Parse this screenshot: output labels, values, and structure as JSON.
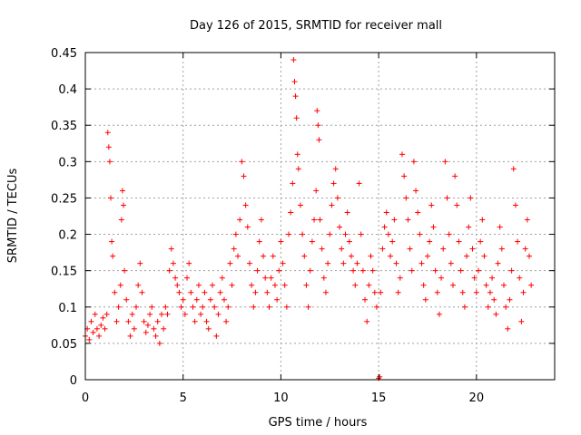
{
  "chart_data": {
    "type": "scatter",
    "title": "Day 126 of 2015, SRMTID for receiver mall",
    "xlabel": "GPS time / hours",
    "ylabel": "SRMTID / TECUs",
    "xlim": [
      0,
      24
    ],
    "ylim": [
      0,
      0.45
    ],
    "xticks": [
      0,
      5,
      10,
      15,
      20
    ],
    "xtick_labels": [
      "0",
      "5",
      "10",
      "15",
      "20"
    ],
    "yticks": [
      0,
      0.05,
      0.1,
      0.15,
      0.2,
      0.25,
      0.3,
      0.35,
      0.4,
      0.45
    ],
    "ytick_labels": [
      "0",
      "0.05",
      "0.1",
      "0.15",
      "0.2",
      "0.25",
      "0.3",
      "0.35",
      "0.4",
      "0.45"
    ],
    "grid": true,
    "marker": "+",
    "color": "#ff0000",
    "series": [
      {
        "name": "SRMTID",
        "points": [
          [
            0.0,
            0.06
          ],
          [
            0.1,
            0.07
          ],
          [
            0.2,
            0.055
          ],
          [
            0.3,
            0.08
          ],
          [
            0.4,
            0.065
          ],
          [
            0.5,
            0.09
          ],
          [
            0.6,
            0.07
          ],
          [
            0.7,
            0.06
          ],
          [
            0.8,
            0.075
          ],
          [
            0.9,
            0.085
          ],
          [
            1.0,
            0.07
          ],
          [
            1.1,
            0.09
          ],
          [
            1.15,
            0.34
          ],
          [
            1.2,
            0.32
          ],
          [
            1.25,
            0.3
          ],
          [
            1.3,
            0.25
          ],
          [
            1.35,
            0.19
          ],
          [
            1.4,
            0.17
          ],
          [
            1.5,
            0.12
          ],
          [
            1.6,
            0.08
          ],
          [
            1.7,
            0.1
          ],
          [
            1.8,
            0.13
          ],
          [
            1.85,
            0.22
          ],
          [
            1.9,
            0.26
          ],
          [
            1.95,
            0.24
          ],
          [
            2.0,
            0.15
          ],
          [
            2.1,
            0.11
          ],
          [
            2.2,
            0.08
          ],
          [
            2.3,
            0.06
          ],
          [
            2.4,
            0.09
          ],
          [
            2.5,
            0.07
          ],
          [
            2.6,
            0.1
          ],
          [
            2.7,
            0.13
          ],
          [
            2.8,
            0.16
          ],
          [
            2.9,
            0.12
          ],
          [
            3.0,
            0.08
          ],
          [
            3.1,
            0.065
          ],
          [
            3.2,
            0.075
          ],
          [
            3.3,
            0.09
          ],
          [
            3.4,
            0.1
          ],
          [
            3.5,
            0.07
          ],
          [
            3.6,
            0.06
          ],
          [
            3.7,
            0.08
          ],
          [
            3.8,
            0.05
          ],
          [
            3.9,
            0.09
          ],
          [
            4.0,
            0.07
          ],
          [
            4.1,
            0.1
          ],
          [
            4.2,
            0.09
          ],
          [
            4.3,
            0.15
          ],
          [
            4.4,
            0.18
          ],
          [
            4.5,
            0.16
          ],
          [
            4.6,
            0.14
          ],
          [
            4.7,
            0.13
          ],
          [
            4.8,
            0.12
          ],
          [
            4.9,
            0.1
          ],
          [
            5.0,
            0.11
          ],
          [
            5.1,
            0.09
          ],
          [
            5.2,
            0.14
          ],
          [
            5.3,
            0.16
          ],
          [
            5.4,
            0.12
          ],
          [
            5.5,
            0.1
          ],
          [
            5.6,
            0.08
          ],
          [
            5.7,
            0.11
          ],
          [
            5.8,
            0.13
          ],
          [
            5.9,
            0.09
          ],
          [
            6.0,
            0.1
          ],
          [
            6.1,
            0.12
          ],
          [
            6.2,
            0.08
          ],
          [
            6.3,
            0.07
          ],
          [
            6.4,
            0.11
          ],
          [
            6.5,
            0.13
          ],
          [
            6.6,
            0.1
          ],
          [
            6.7,
            0.06
          ],
          [
            6.8,
            0.09
          ],
          [
            6.9,
            0.12
          ],
          [
            7.0,
            0.14
          ],
          [
            7.1,
            0.11
          ],
          [
            7.2,
            0.08
          ],
          [
            7.3,
            0.1
          ],
          [
            7.4,
            0.16
          ],
          [
            7.5,
            0.13
          ],
          [
            7.6,
            0.18
          ],
          [
            7.7,
            0.2
          ],
          [
            7.8,
            0.17
          ],
          [
            7.9,
            0.22
          ],
          [
            8.0,
            0.3
          ],
          [
            8.1,
            0.28
          ],
          [
            8.2,
            0.24
          ],
          [
            8.3,
            0.21
          ],
          [
            8.4,
            0.16
          ],
          [
            8.5,
            0.13
          ],
          [
            8.6,
            0.1
          ],
          [
            8.7,
            0.12
          ],
          [
            8.8,
            0.15
          ],
          [
            8.9,
            0.19
          ],
          [
            9.0,
            0.22
          ],
          [
            9.1,
            0.17
          ],
          [
            9.2,
            0.14
          ],
          [
            9.3,
            0.12
          ],
          [
            9.4,
            0.1
          ],
          [
            9.5,
            0.14
          ],
          [
            9.6,
            0.17
          ],
          [
            9.7,
            0.13
          ],
          [
            9.8,
            0.11
          ],
          [
            9.9,
            0.15
          ],
          [
            10.0,
            0.19
          ],
          [
            10.1,
            0.16
          ],
          [
            10.2,
            0.13
          ],
          [
            10.3,
            0.1
          ],
          [
            10.4,
            0.2
          ],
          [
            10.5,
            0.23
          ],
          [
            10.6,
            0.27
          ],
          [
            10.65,
            0.44
          ],
          [
            10.7,
            0.41
          ],
          [
            10.75,
            0.39
          ],
          [
            10.8,
            0.36
          ],
          [
            10.85,
            0.31
          ],
          [
            10.9,
            0.29
          ],
          [
            11.0,
            0.24
          ],
          [
            11.1,
            0.2
          ],
          [
            11.2,
            0.17
          ],
          [
            11.3,
            0.13
          ],
          [
            11.4,
            0.1
          ],
          [
            11.5,
            0.15
          ],
          [
            11.6,
            0.19
          ],
          [
            11.7,
            0.22
          ],
          [
            11.8,
            0.26
          ],
          [
            11.85,
            0.37
          ],
          [
            11.9,
            0.35
          ],
          [
            11.95,
            0.33
          ],
          [
            12.0,
            0.22
          ],
          [
            12.1,
            0.18
          ],
          [
            12.2,
            0.14
          ],
          [
            12.3,
            0.12
          ],
          [
            12.4,
            0.16
          ],
          [
            12.5,
            0.2
          ],
          [
            12.6,
            0.24
          ],
          [
            12.7,
            0.27
          ],
          [
            12.8,
            0.29
          ],
          [
            12.9,
            0.25
          ],
          [
            13.0,
            0.21
          ],
          [
            13.1,
            0.18
          ],
          [
            13.2,
            0.16
          ],
          [
            13.3,
            0.2
          ],
          [
            13.4,
            0.23
          ],
          [
            13.5,
            0.19
          ],
          [
            13.6,
            0.17
          ],
          [
            13.7,
            0.15
          ],
          [
            13.8,
            0.13
          ],
          [
            13.9,
            0.16
          ],
          [
            14.0,
            0.27
          ],
          [
            14.1,
            0.2
          ],
          [
            14.2,
            0.15
          ],
          [
            14.3,
            0.11
          ],
          [
            14.4,
            0.08
          ],
          [
            14.5,
            0.13
          ],
          [
            14.6,
            0.17
          ],
          [
            14.7,
            0.15
          ],
          [
            14.8,
            0.12
          ],
          [
            14.9,
            0.1
          ],
          [
            15.0,
            0.002
          ],
          [
            15.05,
            0.004
          ],
          [
            15.1,
            0.12
          ],
          [
            15.2,
            0.18
          ],
          [
            15.3,
            0.21
          ],
          [
            15.4,
            0.23
          ],
          [
            15.5,
            0.2
          ],
          [
            15.6,
            0.17
          ],
          [
            15.7,
            0.19
          ],
          [
            15.8,
            0.22
          ],
          [
            15.9,
            0.16
          ],
          [
            16.0,
            0.12
          ],
          [
            16.1,
            0.14
          ],
          [
            16.2,
            0.31
          ],
          [
            16.3,
            0.28
          ],
          [
            16.4,
            0.25
          ],
          [
            16.5,
            0.22
          ],
          [
            16.6,
            0.18
          ],
          [
            16.7,
            0.15
          ],
          [
            16.8,
            0.3
          ],
          [
            16.9,
            0.26
          ],
          [
            17.0,
            0.23
          ],
          [
            17.1,
            0.2
          ],
          [
            17.2,
            0.16
          ],
          [
            17.3,
            0.13
          ],
          [
            17.4,
            0.11
          ],
          [
            17.5,
            0.17
          ],
          [
            17.6,
            0.19
          ],
          [
            17.7,
            0.24
          ],
          [
            17.8,
            0.21
          ],
          [
            17.9,
            0.15
          ],
          [
            18.0,
            0.12
          ],
          [
            18.1,
            0.09
          ],
          [
            18.2,
            0.14
          ],
          [
            18.3,
            0.18
          ],
          [
            18.4,
            0.3
          ],
          [
            18.5,
            0.25
          ],
          [
            18.6,
            0.2
          ],
          [
            18.7,
            0.16
          ],
          [
            18.8,
            0.13
          ],
          [
            18.9,
            0.28
          ],
          [
            19.0,
            0.24
          ],
          [
            19.1,
            0.19
          ],
          [
            19.2,
            0.15
          ],
          [
            19.3,
            0.12
          ],
          [
            19.4,
            0.1
          ],
          [
            19.5,
            0.17
          ],
          [
            19.6,
            0.21
          ],
          [
            19.7,
            0.25
          ],
          [
            19.8,
            0.18
          ],
          [
            19.9,
            0.14
          ],
          [
            20.0,
            0.12
          ],
          [
            20.1,
            0.15
          ],
          [
            20.2,
            0.19
          ],
          [
            20.3,
            0.22
          ],
          [
            20.4,
            0.17
          ],
          [
            20.5,
            0.13
          ],
          [
            20.6,
            0.1
          ],
          [
            20.7,
            0.12
          ],
          [
            20.8,
            0.14
          ],
          [
            20.9,
            0.11
          ],
          [
            21.0,
            0.09
          ],
          [
            21.1,
            0.16
          ],
          [
            21.2,
            0.21
          ],
          [
            21.3,
            0.18
          ],
          [
            21.4,
            0.13
          ],
          [
            21.5,
            0.1
          ],
          [
            21.6,
            0.07
          ],
          [
            21.7,
            0.11
          ],
          [
            21.8,
            0.15
          ],
          [
            21.9,
            0.29
          ],
          [
            22.0,
            0.24
          ],
          [
            22.1,
            0.19
          ],
          [
            22.2,
            0.14
          ],
          [
            22.3,
            0.08
          ],
          [
            22.4,
            0.12
          ],
          [
            22.5,
            0.18
          ],
          [
            22.6,
            0.22
          ],
          [
            22.7,
            0.17
          ],
          [
            22.8,
            0.13
          ]
        ]
      }
    ]
  }
}
